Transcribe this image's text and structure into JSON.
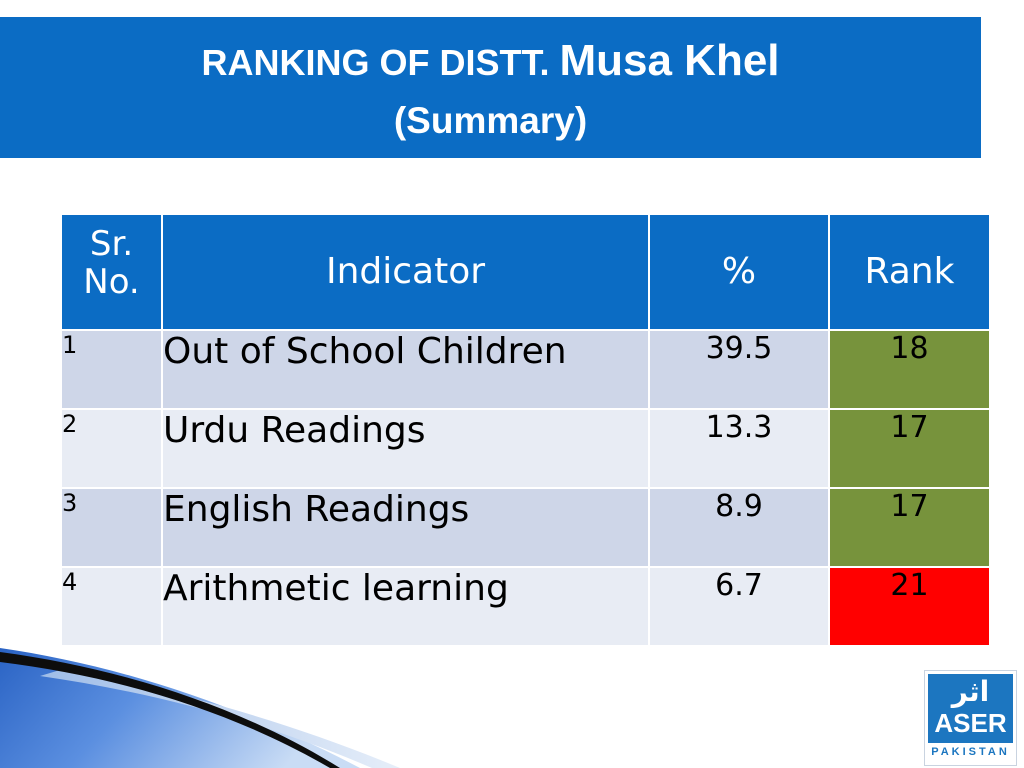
{
  "title": {
    "prefix": "RANKING OF DISTT.",
    "district": "Musa Khel",
    "subtitle": "(Summary)"
  },
  "table": {
    "headers": {
      "sr_line1": "Sr.",
      "sr_line2": "No.",
      "indicator": "Indicator",
      "percent": "%",
      "rank": "Rank"
    },
    "rows": [
      {
        "sr": "1",
        "indicator": "Out of School Children",
        "percent": "39.5",
        "rank": "18",
        "rank_color": "#77933c"
      },
      {
        "sr": "2",
        "indicator": "Urdu Readings",
        "percent": "13.3",
        "rank": "17",
        "rank_color": "#77933c"
      },
      {
        "sr": "3",
        "indicator": "English Readings",
        "percent": "8.9",
        "rank": "17",
        "rank_color": "#77933c"
      },
      {
        "sr": "4",
        "indicator": "Arithmetic learning",
        "percent": "6.7",
        "rank": "21",
        "rank_color": "#ff0000"
      }
    ]
  },
  "logo": {
    "urdu": "اثر",
    "name": "ASER",
    "country": "PAKISTAN"
  },
  "colors": {
    "header_blue": "#0b6cc4",
    "rank_good": "#77933c",
    "rank_bad": "#ff0000"
  }
}
